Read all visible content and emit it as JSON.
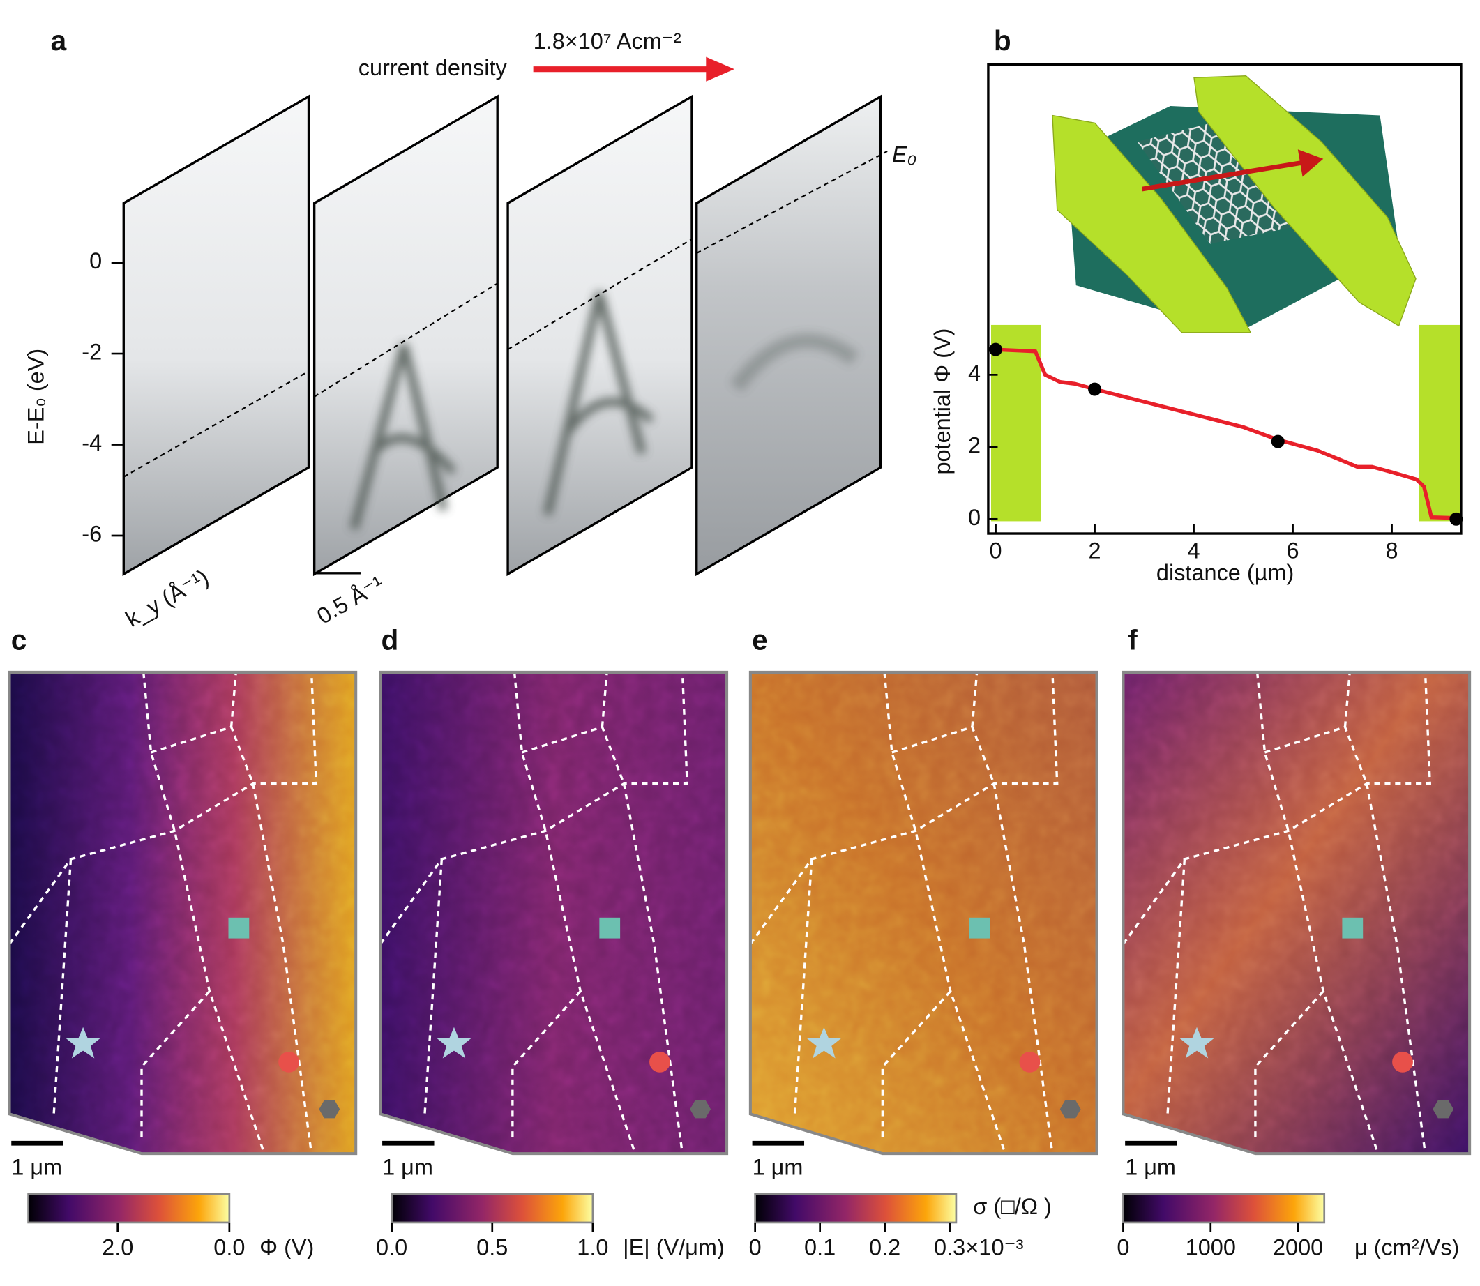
{
  "labels": [
    "a",
    "b",
    "c",
    "d",
    "e",
    "f"
  ],
  "panel_a": {
    "annotation": "current density",
    "current": "1.8×10⁷ Acm⁻²",
    "e0_label": "E₀",
    "y_label": "E-E₀ (eV)",
    "x_label": "k_y (Å⁻¹)",
    "scale_label": "0.5 Å⁻¹",
    "yticks": [
      0,
      -2,
      -4,
      -6
    ]
  },
  "chart_data": {
    "type": "line",
    "x_label": "distance (µm)",
    "y_label": "potential Φ (V)",
    "color": "#e8202a",
    "x": [
      0,
      0.8,
      1.0,
      1.3,
      1.6,
      2.0,
      3.0,
      4.0,
      5.0,
      5.7,
      6.5,
      7.3,
      7.6,
      8.0,
      8.5,
      8.65,
      8.8,
      9.3
    ],
    "values": [
      4.7,
      4.65,
      4.0,
      3.8,
      3.75,
      3.6,
      3.25,
      2.9,
      2.55,
      2.2,
      1.9,
      1.45,
      1.45,
      1.3,
      1.1,
      0.9,
      0.05,
      0.03
    ],
    "markers": {
      "color": "#000000",
      "x": [
        0,
        2,
        5.7,
        9.3
      ],
      "values": [
        4.7,
        3.6,
        2.15,
        0
      ]
    },
    "xlim": [
      -0.15,
      9.4
    ],
    "ylim": [
      -0.4,
      12.6
    ],
    "xticks": [
      0,
      2,
      4,
      6,
      8
    ],
    "yticks": [
      0,
      2,
      4
    ]
  },
  "maps": [
    {
      "scale_bar": "1 μm",
      "colorbar": {
        "range": [
          3.6,
          0
        ],
        "ticks": [
          {
            "value": 2,
            "label": "2.0"
          },
          {
            "value": 0,
            "label": "0.0"
          }
        ],
        "unit": "Φ (V)"
      }
    },
    {
      "scale_bar": "1 μm",
      "colorbar": {
        "range": [
          0,
          1
        ],
        "ticks": [
          {
            "value": 0,
            "label": "0.0"
          },
          0.5,
          {
            "value": 1,
            "label": "1.0"
          }
        ],
        "unit": "|E| (V/μm)"
      }
    },
    {
      "scale_bar": "1 μm",
      "colorbar": {
        "range": [
          0,
          0.31
        ],
        "ticks": [
          0,
          0.1,
          0.2,
          0.3
        ],
        "unit": "σ (□/Ω )",
        "multiplier": "×10⁻³"
      }
    },
    {
      "scale_bar": "1 μm",
      "colorbar": {
        "range": [
          0,
          2300
        ],
        "ticks": [
          0,
          1000,
          2000
        ],
        "unit": "μ (cm²/Vs)"
      }
    }
  ]
}
